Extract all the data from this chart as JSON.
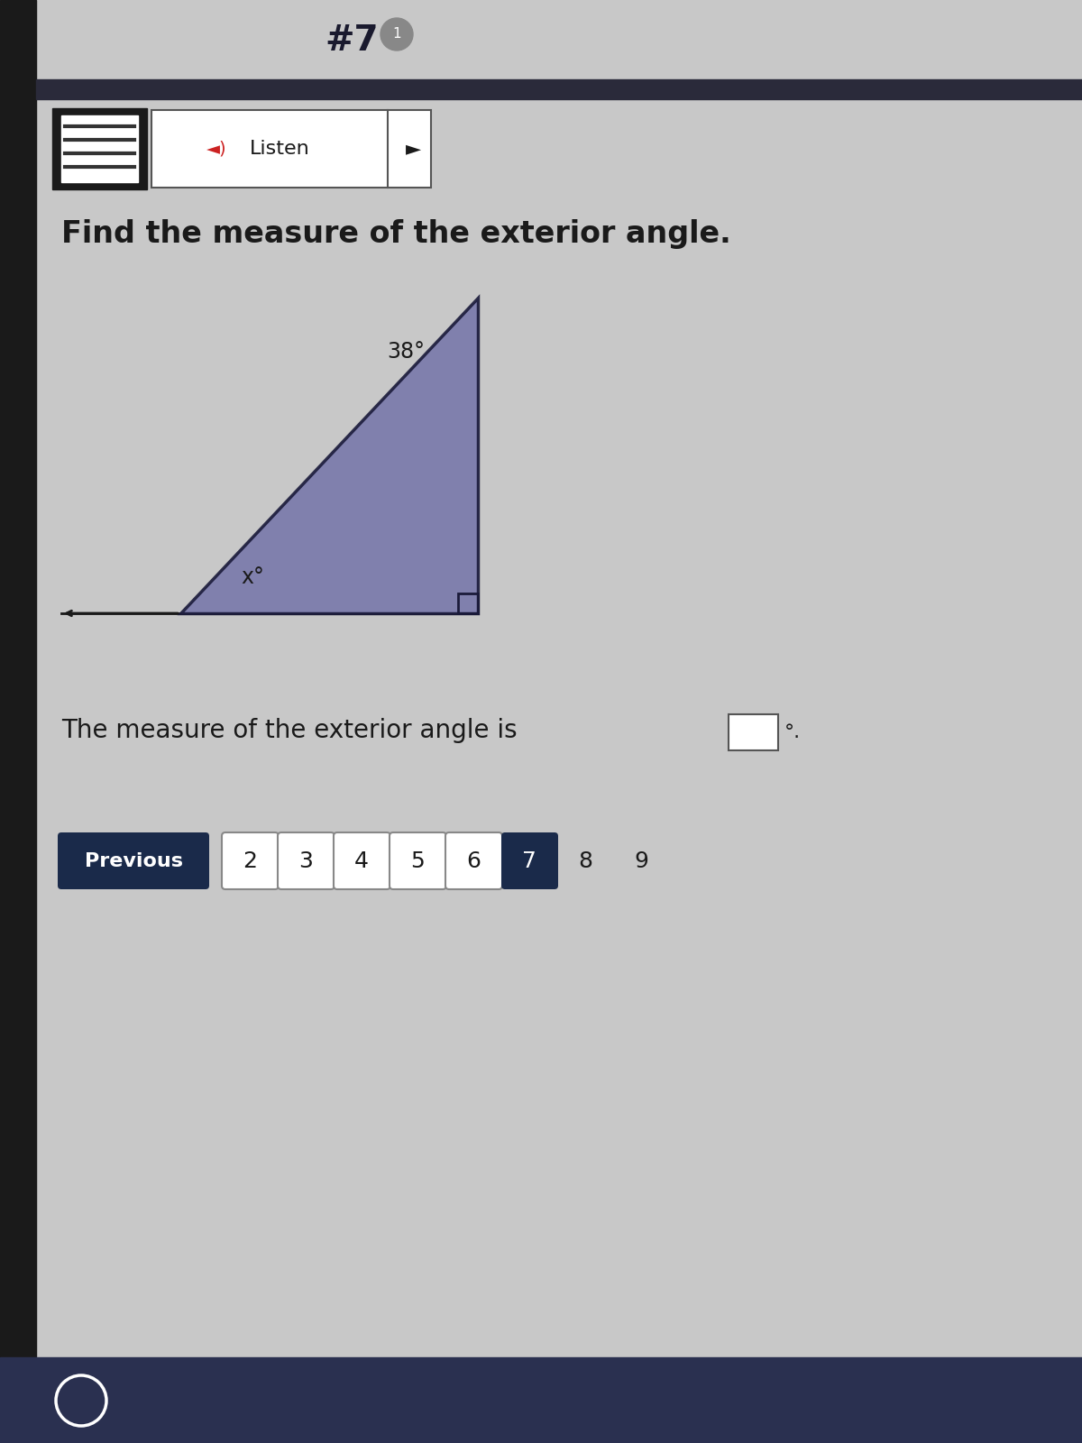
{
  "bg_color": "#c0c0c0",
  "page_bg": "#c8c8c8",
  "title_text": "#7",
  "question_text": "Find the measure of the exterior angle.",
  "answer_text": "The measure of the exterior angle is",
  "triangle_fill": "#7878aa",
  "triangle_edge": "#1a1a3a",
  "angle_38_label": "38°",
  "angle_x_label": "x°",
  "nav_buttons": [
    "2",
    "3",
    "4",
    "5",
    "6",
    "7",
    "8",
    "9"
  ],
  "nav_active": "7",
  "prev_button_text": "Previous",
  "nav_btn_bg": "#1a2a4a",
  "nav_btn_color": "#ffffff",
  "nav_inactive_bg": "#ffffff",
  "nav_inactive_color": "#1a1a1a",
  "listen_text": "Listen",
  "separator_color": "#2a2a3a",
  "bottom_bar_color": "#2a3050",
  "left_edge_color": "#1a1a1a"
}
